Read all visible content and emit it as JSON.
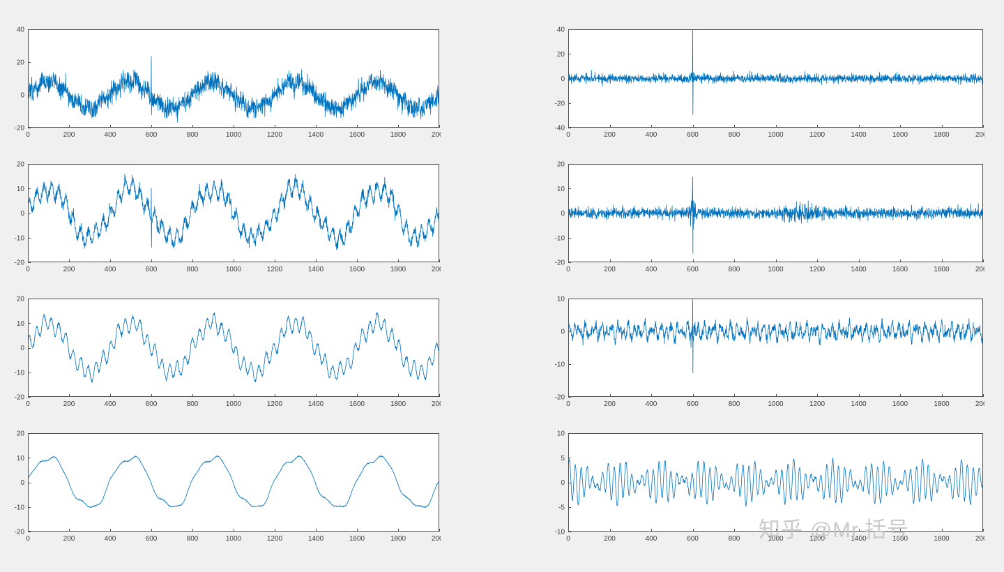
{
  "figure": {
    "background": "#f0f0f0",
    "line_color": "#0072BD",
    "axis_color": "#4d4d4d",
    "tick_label_color": "#3c3c3c"
  },
  "watermark": {
    "text": "知乎 @Mr.括号"
  },
  "chart_data": [
    {
      "id": "left-1",
      "type": "line",
      "description": "noisy sine signal with impulse spike at x=600",
      "xlim": [
        0,
        2000
      ],
      "xticks": [
        0,
        200,
        400,
        600,
        800,
        1000,
        1200,
        1400,
        1600,
        1800,
        2000
      ],
      "ylim": [
        -20,
        40
      ],
      "yticks": [
        -20,
        0,
        20,
        40
      ],
      "seed": 101,
      "components": [
        {
          "t": "sin",
          "a": 8,
          "p": 400,
          "ph": 0
        },
        {
          "t": "sin",
          "a": 1.5,
          "p": 57,
          "ph": 0.3
        },
        {
          "t": "noise",
          "sigma": 3.0
        },
        {
          "t": "spike",
          "x": 600,
          "up": 22,
          "down": -12
        }
      ]
    },
    {
      "id": "left-2",
      "type": "line",
      "description": "partially denoised sine with ripple, spike at x=600",
      "xlim": [
        0,
        2000
      ],
      "xticks": [
        0,
        200,
        400,
        600,
        800,
        1000,
        1200,
        1400,
        1600,
        1800,
        2000
      ],
      "ylim": [
        -20,
        20
      ],
      "yticks": [
        -20,
        -10,
        0,
        10,
        20
      ],
      "seed": 102,
      "components": [
        {
          "t": "sin",
          "a": 10,
          "p": 400,
          "ph": 0
        },
        {
          "t": "sin",
          "a": 3,
          "p": 36,
          "ph": 0.5
        },
        {
          "t": "sin",
          "a": 1.2,
          "p": 160,
          "ph": 1.2
        },
        {
          "t": "noise",
          "sigma": 1.0
        },
        {
          "t": "spike",
          "x": 600,
          "up": 14,
          "down": -9
        }
      ]
    },
    {
      "id": "left-3",
      "type": "line",
      "description": "smoother sine with high-frequency ripple",
      "xlim": [
        0,
        2000
      ],
      "xticks": [
        0,
        200,
        400,
        600,
        800,
        1000,
        1200,
        1400,
        1600,
        1800,
        2000
      ],
      "ylim": [
        -20,
        20
      ],
      "yticks": [
        -20,
        -10,
        0,
        10,
        20
      ],
      "seed": 103,
      "components": [
        {
          "t": "sin",
          "a": 10,
          "p": 400,
          "ph": 0
        },
        {
          "t": "sin",
          "a": 3,
          "p": 36,
          "ph": 0.5
        },
        {
          "t": "sin",
          "a": 1,
          "p": 90,
          "ph": 2.0
        },
        {
          "t": "noise",
          "sigma": 0.35
        }
      ]
    },
    {
      "id": "left-4",
      "type": "line",
      "description": "fully smoothed sine approximation",
      "xlim": [
        0,
        2000
      ],
      "xticks": [
        0,
        200,
        400,
        600,
        800,
        1000,
        1200,
        1400,
        1600,
        1800,
        2000
      ],
      "ylim": [
        -20,
        20
      ],
      "yticks": [
        -20,
        -10,
        0,
        10,
        20
      ],
      "seed": 104,
      "components": [
        {
          "t": "sin",
          "a": 10.3,
          "p": 400,
          "ph": 0
        },
        {
          "t": "sin",
          "a": 1.1,
          "p": 133,
          "ph": 0.8
        },
        {
          "t": "sin",
          "a": 0.5,
          "p": 66,
          "ph": 1.7
        },
        {
          "t": "noise",
          "sigma": 0.1
        }
      ]
    },
    {
      "id": "right-1",
      "type": "line",
      "description": "detail/residual noise level 1 with large impulse at x=600",
      "xlim": [
        0,
        2000
      ],
      "xticks": [
        0,
        200,
        400,
        600,
        800,
        1000,
        1200,
        1400,
        1600,
        1800,
        2000
      ],
      "ylim": [
        -40,
        40
      ],
      "yticks": [
        -40,
        -20,
        0,
        20,
        40
      ],
      "seed": 201,
      "components": [
        {
          "t": "noise",
          "sigma": 1.7
        },
        {
          "t": "burst",
          "center": 600,
          "width": 25,
          "sigma": 2.5
        },
        {
          "t": "spike",
          "x": 600,
          "up": 38,
          "down": -33
        }
      ]
    },
    {
      "id": "right-2",
      "type": "line",
      "description": "detail noise level 2 with impulse at x=600 and burst near x=1100",
      "xlim": [
        0,
        2000
      ],
      "xticks": [
        0,
        200,
        400,
        600,
        800,
        1000,
        1200,
        1400,
        1600,
        1800,
        2000
      ],
      "ylim": [
        -20,
        20
      ],
      "yticks": [
        -20,
        -10,
        0,
        10,
        20
      ],
      "seed": 202,
      "components": [
        {
          "t": "noise",
          "sigma": 1.1
        },
        {
          "t": "burst",
          "center": 600,
          "width": 18,
          "sigma": 3
        },
        {
          "t": "burst",
          "center": 1120,
          "width": 150,
          "sigma": 1.4
        },
        {
          "t": "spike",
          "x": 600,
          "up": 15,
          "down": -13
        }
      ]
    },
    {
      "id": "right-3",
      "type": "line",
      "description": "detail oscillatory noise level 3 with impulse at x=600",
      "xlim": [
        0,
        2000
      ],
      "xticks": [
        0,
        200,
        400,
        600,
        800,
        1000,
        1200,
        1400,
        1600,
        1800,
        2000
      ],
      "ylim": [
        -20,
        10
      ],
      "yticks": [
        -20,
        -10,
        0,
        10
      ],
      "seed": 203,
      "components": [
        {
          "t": "sin",
          "a": 1.3,
          "p": 26,
          "ph": 0.4
        },
        {
          "t": "sin",
          "a": 1.1,
          "p": 41,
          "ph": 1.5
        },
        {
          "t": "sin",
          "a": 0.8,
          "p": 17,
          "ph": 2.6
        },
        {
          "t": "noise",
          "sigma": 0.7
        },
        {
          "t": "burst",
          "center": 600,
          "width": 15,
          "sigma": 2
        },
        {
          "t": "spike",
          "x": 600,
          "up": 10,
          "down": -12
        }
      ]
    },
    {
      "id": "right-4",
      "type": "line",
      "description": "smooth beating oscillation detail level 4",
      "xlim": [
        0,
        2000
      ],
      "xticks": [
        0,
        200,
        400,
        600,
        800,
        1000,
        1200,
        1400,
        1600,
        1800,
        2000
      ],
      "ylim": [
        -10,
        10
      ],
      "yticks": [
        -10,
        -5,
        0,
        5,
        10
      ],
      "seed": 204,
      "components": [
        {
          "t": "sin",
          "a": 2.2,
          "p": 27,
          "ph": 0
        },
        {
          "t": "sin",
          "a": 1.8,
          "p": 31,
          "ph": 0.9
        },
        {
          "t": "sin",
          "a": 0.8,
          "p": 90,
          "ph": 1.2
        },
        {
          "t": "noise",
          "sigma": 0.15
        }
      ]
    }
  ]
}
